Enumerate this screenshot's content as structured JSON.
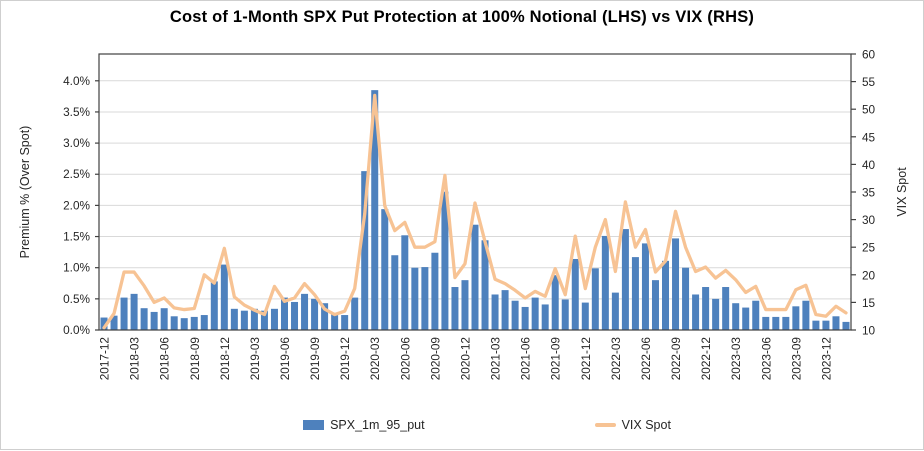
{
  "chart_data": {
    "type": "bar+line",
    "title": "Cost of 1-Month SPX Put Protection at 100% Notional (LHS) vs VIX (RHS)",
    "grid": true,
    "legend_position": "bottom",
    "x_tick_every": 3,
    "x_categories": [
      "2017-12",
      "2018-01",
      "2018-02",
      "2018-03",
      "2018-04",
      "2018-05",
      "2018-06",
      "2018-07",
      "2018-08",
      "2018-09",
      "2018-10",
      "2018-11",
      "2018-12",
      "2019-01",
      "2019-02",
      "2019-03",
      "2019-04",
      "2019-05",
      "2019-06",
      "2019-07",
      "2019-08",
      "2019-09",
      "2019-10",
      "2019-11",
      "2019-12",
      "2020-01",
      "2020-02",
      "2020-03",
      "2020-04",
      "2020-05",
      "2020-06",
      "2020-07",
      "2020-08",
      "2020-09",
      "2020-10",
      "2020-11",
      "2020-12",
      "2021-01",
      "2021-02",
      "2021-03",
      "2021-04",
      "2021-05",
      "2021-06",
      "2021-07",
      "2021-08",
      "2021-09",
      "2021-10",
      "2021-11",
      "2021-12",
      "2022-01",
      "2022-02",
      "2022-03",
      "2022-04",
      "2022-05",
      "2022-06",
      "2022-07",
      "2022-08",
      "2022-09",
      "2022-10",
      "2022-11",
      "2022-12",
      "2023-01",
      "2023-02",
      "2023-03",
      "2023-04",
      "2023-05",
      "2023-06",
      "2023-07",
      "2023-08",
      "2023-09",
      "2023-10",
      "2023-11",
      "2023-12",
      "2024-01",
      "2024-02"
    ],
    "left_axis": {
      "label": "Premium % (Over Spot)",
      "tick_labels": [
        "0.0%",
        "0.5%",
        "1.0%",
        "1.5%",
        "2.0%",
        "2.5%",
        "3.0%",
        "3.5%",
        "4.0%"
      ],
      "tick_values": [
        0,
        0.5,
        1.0,
        1.5,
        2.0,
        2.5,
        3.0,
        3.5,
        4.0
      ],
      "range": [
        0,
        4.43
      ]
    },
    "right_axis": {
      "label": "VIX Spot",
      "tick_values": [
        10,
        15,
        20,
        25,
        30,
        35,
        40,
        45,
        50,
        55,
        60
      ],
      "range": [
        10,
        60
      ]
    },
    "series": [
      {
        "name": "SPX_1m_95_put",
        "type": "bar",
        "axis": "left",
        "unit": "%",
        "color": "#4E81BD",
        "values": [
          0.2,
          0.23,
          0.52,
          0.58,
          0.35,
          0.29,
          0.35,
          0.22,
          0.19,
          0.21,
          0.24,
          0.78,
          1.05,
          0.34,
          0.31,
          0.34,
          0.31,
          0.34,
          0.52,
          0.45,
          0.58,
          0.5,
          0.43,
          0.25,
          0.24,
          0.52,
          2.55,
          3.85,
          1.94,
          1.2,
          1.52,
          1.0,
          1.01,
          1.24,
          2.22,
          0.69,
          0.8,
          1.69,
          1.44,
          0.57,
          0.64,
          0.47,
          0.37,
          0.52,
          0.41,
          0.88,
          0.49,
          1.14,
          0.44,
          0.99,
          1.51,
          0.6,
          1.62,
          1.17,
          1.39,
          0.8,
          1.11,
          1.47,
          1.0,
          0.57,
          0.69,
          0.5,
          0.69,
          0.43,
          0.36,
          0.47,
          0.21,
          0.21,
          0.21,
          0.38,
          0.47,
          0.15,
          0.15,
          0.22,
          0.13
        ]
      },
      {
        "name": "VIX Spot",
        "type": "line",
        "axis": "right",
        "color": "#F7C394",
        "values": [
          10.4,
          13.0,
          20.5,
          20.5,
          18.0,
          15.0,
          15.8,
          14.0,
          13.7,
          13.9,
          20.0,
          18.5,
          24.8,
          16.0,
          14.5,
          13.6,
          12.8,
          17.9,
          15.2,
          15.8,
          18.4,
          16.4,
          13.8,
          12.8,
          13.4,
          17.5,
          31.0,
          52.5,
          32.5,
          28.0,
          29.5,
          25.0,
          25.0,
          26.0,
          38.0,
          19.5,
          22.0,
          33.0,
          26.0,
          19.2,
          18.4,
          17.2,
          15.8,
          17.0,
          16.1,
          21.1,
          16.4,
          27.0,
          17.5,
          25.0,
          30.0,
          20.6,
          33.2,
          25.0,
          28.2,
          20.5,
          22.5,
          31.5,
          25.0,
          20.6,
          21.4,
          19.4,
          20.8,
          19.1,
          16.8,
          17.9,
          13.7,
          13.7,
          13.7,
          17.3,
          18.1,
          12.8,
          12.5,
          14.3,
          13.1
        ]
      }
    ]
  },
  "legend": {
    "items": [
      {
        "label": "SPX_1m_95_put",
        "marker": "bar-swatch",
        "color": "#4E81BD"
      },
      {
        "label": "VIX Spot",
        "marker": "line-swatch",
        "color": "#F7C394"
      }
    ]
  }
}
